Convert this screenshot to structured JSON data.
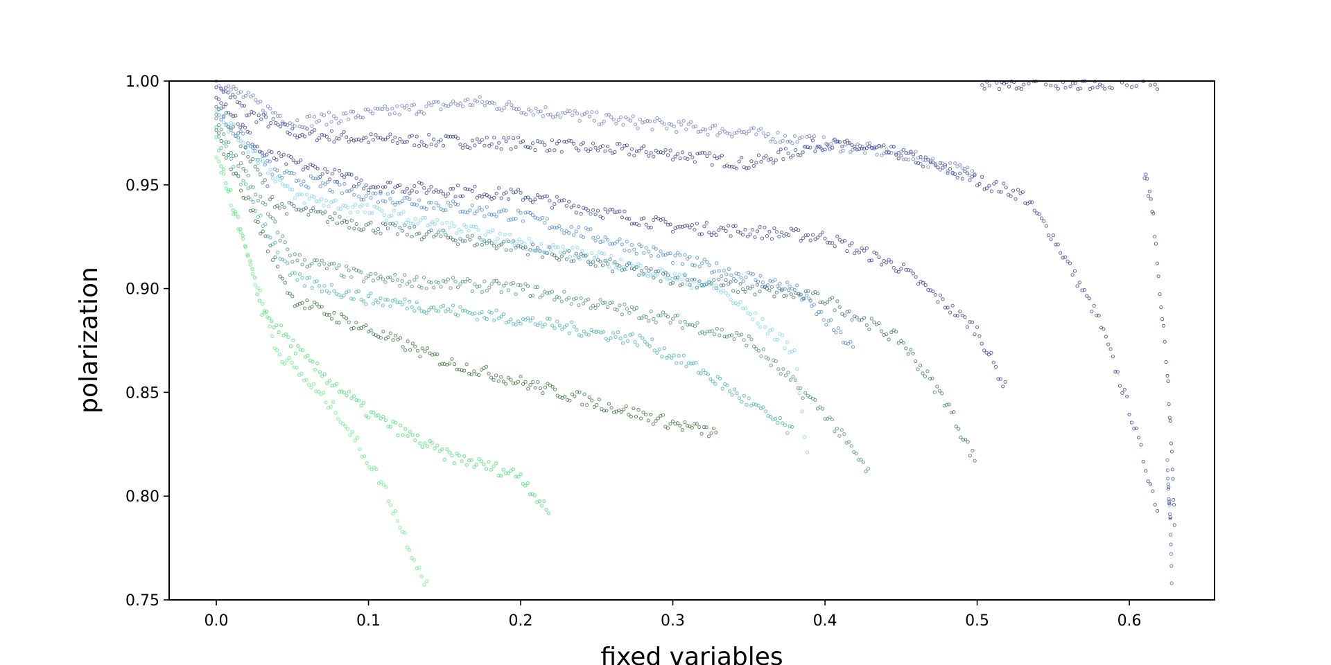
{
  "chart_data": {
    "type": "scatter",
    "title": "",
    "xlabel": "fixed variables",
    "ylabel": "polarization",
    "xlim": [
      -0.031,
      0.656
    ],
    "ylim": [
      0.75,
      1.0
    ],
    "x_ticks": [
      0.0,
      0.1,
      0.2,
      0.3,
      0.4,
      0.5,
      0.6
    ],
    "x_tick_labels": [
      "0.0",
      "0.1",
      "0.2",
      "0.3",
      "0.4",
      "0.5",
      "0.6"
    ],
    "y_ticks": [
      0.75,
      0.8,
      0.85,
      0.9,
      0.95,
      1.0
    ],
    "y_tick_labels": [
      "0.75",
      "0.80",
      "0.85",
      "0.90",
      "0.95",
      "1.00"
    ],
    "grid": false,
    "legend": "none",
    "colormap": [
      "#00ee33",
      "#00cc66",
      "#33bb99",
      "#55bbdd",
      "#5599ee",
      "#4466dd",
      "#2233aa",
      "#0a1a6e"
    ],
    "series": [
      {
        "color": "#1a237e",
        "values": [
          [
            0.0,
            1.0
          ],
          [
            0.02,
            0.985
          ],
          [
            0.05,
            0.975
          ],
          [
            0.1,
            0.972
          ],
          [
            0.2,
            0.97
          ],
          [
            0.3,
            0.965
          ],
          [
            0.35,
            0.96
          ],
          [
            0.4,
            0.97
          ],
          [
            0.45,
            0.965
          ],
          [
            0.5,
            0.952
          ],
          [
            0.53,
            0.945
          ],
          [
            0.55,
            0.925
          ],
          [
            0.58,
            0.885
          ],
          [
            0.6,
            0.842
          ],
          [
            0.62,
            0.79
          ]
        ]
      },
      {
        "color": "#5c6bc0",
        "values": [
          [
            0.0,
            1.0
          ],
          [
            0.05,
            0.98
          ],
          [
            0.17,
            0.99
          ],
          [
            0.25,
            0.982
          ],
          [
            0.35,
            0.975
          ],
          [
            0.45,
            0.965
          ],
          [
            0.5,
            0.955
          ]
        ]
      },
      {
        "color": "#1a237e",
        "values": [
          [
            0.0,
            0.995
          ],
          [
            0.03,
            0.965
          ],
          [
            0.1,
            0.95
          ],
          [
            0.2,
            0.945
          ],
          [
            0.3,
            0.93
          ],
          [
            0.4,
            0.925
          ],
          [
            0.45,
            0.91
          ],
          [
            0.5,
            0.88
          ],
          [
            0.52,
            0.85
          ]
        ]
      },
      {
        "color": "#1f5c5a",
        "values": [
          [
            0.0,
            0.99
          ],
          [
            0.04,
            0.94
          ],
          [
            0.1,
            0.93
          ],
          [
            0.2,
            0.92
          ],
          [
            0.3,
            0.905
          ],
          [
            0.4,
            0.895
          ],
          [
            0.45,
            0.875
          ],
          [
            0.48,
            0.845
          ],
          [
            0.5,
            0.815
          ]
        ]
      },
      {
        "color": "#3377cc",
        "values": [
          [
            0.0,
            0.985
          ],
          [
            0.04,
            0.955
          ],
          [
            0.1,
            0.945
          ],
          [
            0.2,
            0.935
          ],
          [
            0.3,
            0.915
          ],
          [
            0.38,
            0.9
          ],
          [
            0.42,
            0.87
          ]
        ]
      },
      {
        "color": "#2e7d5b",
        "values": [
          [
            0.0,
            0.98
          ],
          [
            0.05,
            0.915
          ],
          [
            0.1,
            0.905
          ],
          [
            0.2,
            0.9
          ],
          [
            0.3,
            0.885
          ],
          [
            0.35,
            0.875
          ],
          [
            0.4,
            0.84
          ],
          [
            0.43,
            0.81
          ]
        ]
      },
      {
        "color": "#1b5e20",
        "values": [
          [
            0.0,
            0.975
          ],
          [
            0.05,
            0.895
          ],
          [
            0.1,
            0.88
          ],
          [
            0.15,
            0.865
          ],
          [
            0.2,
            0.855
          ],
          [
            0.25,
            0.845
          ],
          [
            0.3,
            0.835
          ],
          [
            0.33,
            0.83
          ]
        ]
      },
      {
        "color": "#26a69a",
        "values": [
          [
            0.0,
            0.975
          ],
          [
            0.05,
            0.905
          ],
          [
            0.1,
            0.895
          ],
          [
            0.2,
            0.885
          ],
          [
            0.28,
            0.875
          ],
          [
            0.32,
            0.86
          ],
          [
            0.38,
            0.83
          ]
        ]
      },
      {
        "color": "#22dd55",
        "values": [
          [
            0.0,
            0.97
          ],
          [
            0.03,
            0.89
          ],
          [
            0.06,
            0.865
          ],
          [
            0.1,
            0.84
          ],
          [
            0.15,
            0.82
          ],
          [
            0.2,
            0.81
          ],
          [
            0.22,
            0.79
          ]
        ]
      },
      {
        "color": "#44ee66",
        "values": [
          [
            0.0,
            0.965
          ],
          [
            0.04,
            0.87
          ],
          [
            0.08,
            0.84
          ],
          [
            0.11,
            0.805
          ],
          [
            0.13,
            0.77
          ],
          [
            0.14,
            0.755
          ]
        ]
      },
      {
        "color": "#66ccee",
        "values": [
          [
            0.0,
            0.985
          ],
          [
            0.05,
            0.945
          ],
          [
            0.15,
            0.93
          ],
          [
            0.25,
            0.915
          ],
          [
            0.33,
            0.9
          ],
          [
            0.38,
            0.87
          ],
          [
            0.39,
            0.81
          ]
        ]
      },
      {
        "color": "#1a237e",
        "values": [
          [
            0.61,
            0.955
          ],
          [
            0.615,
            0.94
          ],
          [
            0.62,
            0.9
          ],
          [
            0.625,
            0.86
          ],
          [
            0.628,
            0.82
          ],
          [
            0.63,
            0.78
          ]
        ]
      },
      {
        "color": "#3344aa",
        "values": [
          [
            0.625,
            0.815
          ],
          [
            0.626,
            0.8
          ],
          [
            0.627,
            0.79
          ],
          [
            0.628,
            0.752
          ]
        ]
      },
      {
        "color": "#1a237e",
        "values": [
          [
            0.5,
            0.999
          ],
          [
            0.55,
            0.999
          ],
          [
            0.6,
            0.999
          ],
          [
            0.62,
            0.999
          ]
        ]
      }
    ]
  }
}
